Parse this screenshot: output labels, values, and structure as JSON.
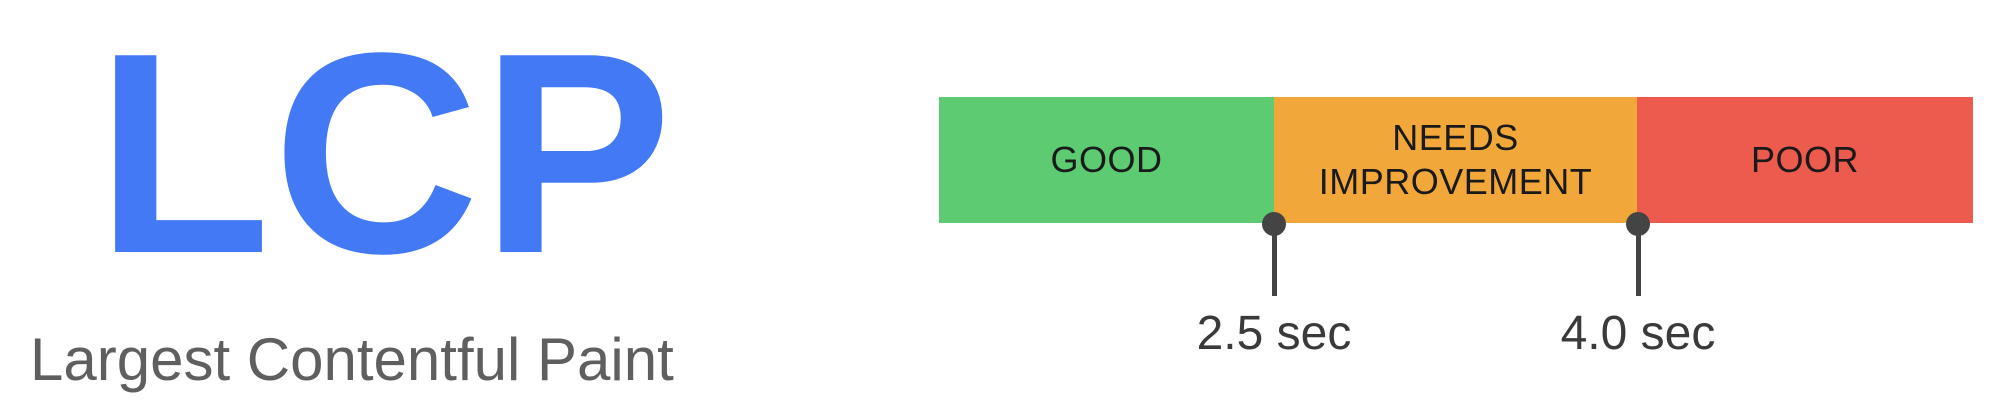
{
  "metric": {
    "acronym": "LCP",
    "full_name": "Largest Contentful Paint",
    "acronym_color": "#4479f5",
    "full_name_color": "#5f5f5f"
  },
  "scale": {
    "segments": [
      {
        "label": "GOOD",
        "color": "#5ccb72",
        "from_sec": 0,
        "to_sec": 2.5
      },
      {
        "label": "NEEDS\nIMPROVEMENT",
        "color": "#f2a73b",
        "from_sec": 2.5,
        "to_sec": 4.0
      },
      {
        "label": "POOR",
        "color": "#ec5b4d",
        "from_sec": 4.0,
        "to_sec": null
      }
    ],
    "thresholds": [
      {
        "value": 2.5,
        "label": "2.5 sec"
      },
      {
        "value": 4.0,
        "label": "4.0 sec"
      }
    ],
    "marker_color": "#444444"
  }
}
